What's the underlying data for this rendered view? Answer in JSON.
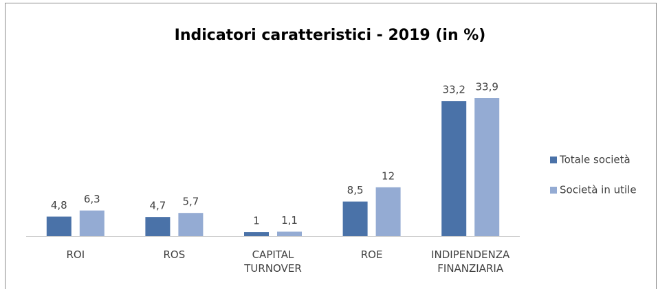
{
  "chart_data": {
    "type": "bar",
    "title": "Indicatori caratteristici - 2019 (in %)",
    "categories": [
      "ROI",
      "ROS",
      "CAPITAL TURNOVER",
      "ROE",
      "INDIPENDENZA FINANZIARIA"
    ],
    "series": [
      {
        "name": "Totale società",
        "color": "#4a72a8",
        "values": [
          4.8,
          4.7,
          1,
          8.5,
          33.2
        ],
        "value_labels": [
          "4,8",
          "4,7",
          "1",
          "8,5",
          "33,2"
        ]
      },
      {
        "name": "Società in utile",
        "color": "#94abd3",
        "values": [
          6.3,
          5.7,
          1.1,
          12,
          33.9
        ],
        "value_labels": [
          "6,3",
          "5,7",
          "1,1",
          "12",
          "33,9"
        ]
      }
    ],
    "legend": "right"
  }
}
